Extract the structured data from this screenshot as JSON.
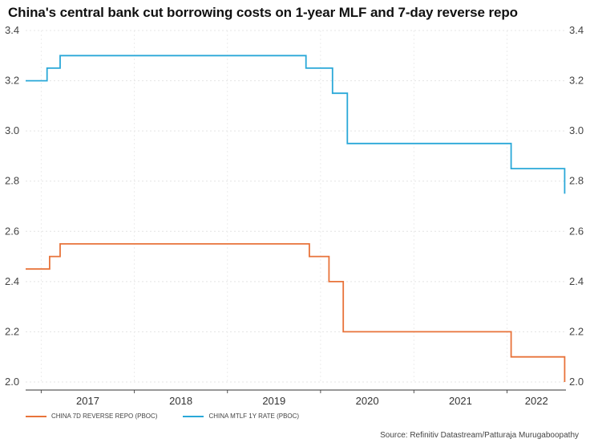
{
  "title": "China's central bank cut borrowing costs on 1-year MLF and 7-day reverse repo",
  "source": "Source: Refinitiv Datastream/Patturaja Murugaboopathy",
  "chart_data": {
    "type": "line",
    "title": "China's central bank cut borrowing costs on 1-year MLF and 7-day reverse repo",
    "xlabel": "",
    "ylabel": "",
    "ylim": [
      2.0,
      3.4
    ],
    "yticks": [
      2.0,
      2.2,
      2.4,
      2.6,
      2.8,
      3.0,
      3.2,
      3.4
    ],
    "ytick_labels": [
      "2.0",
      "2.2",
      "2.4",
      "2.6",
      "2.8",
      "3.0",
      "3.2",
      "3.4"
    ],
    "xlim": [
      "2016-11-01",
      "2022-08-20"
    ],
    "xticks": [
      "2017",
      "2018",
      "2019",
      "2020",
      "2021",
      "2022"
    ],
    "x_scale": "time",
    "step": true,
    "grid": true,
    "dual_y_axis_mirrored": true,
    "legend_position": "bottom-left",
    "series": [
      {
        "name": "CHINA 7D REVERSE REPO (PBOC)",
        "color": "#e8733a",
        "x": [
          "2016-11-01",
          "2017-02-03",
          "2017-03-16",
          "2017-12-14",
          "2019-11-18",
          "2020-02-03",
          "2020-03-30",
          "2022-01-17",
          "2022-08-15"
        ],
        "values": [
          2.45,
          2.5,
          2.55,
          2.55,
          2.5,
          2.4,
          2.2,
          2.1,
          2.0
        ]
      },
      {
        "name": "CHINA MTLF 1Y RATE (PBOC)",
        "color": "#2aa8d8",
        "x": [
          "2016-11-01",
          "2017-01-24",
          "2017-03-16",
          "2017-12-14",
          "2019-11-05",
          "2020-02-17",
          "2020-04-15",
          "2022-01-17",
          "2022-08-15"
        ],
        "values": [
          3.2,
          3.25,
          3.3,
          3.3,
          3.25,
          3.15,
          2.95,
          2.85,
          2.75
        ]
      }
    ]
  }
}
